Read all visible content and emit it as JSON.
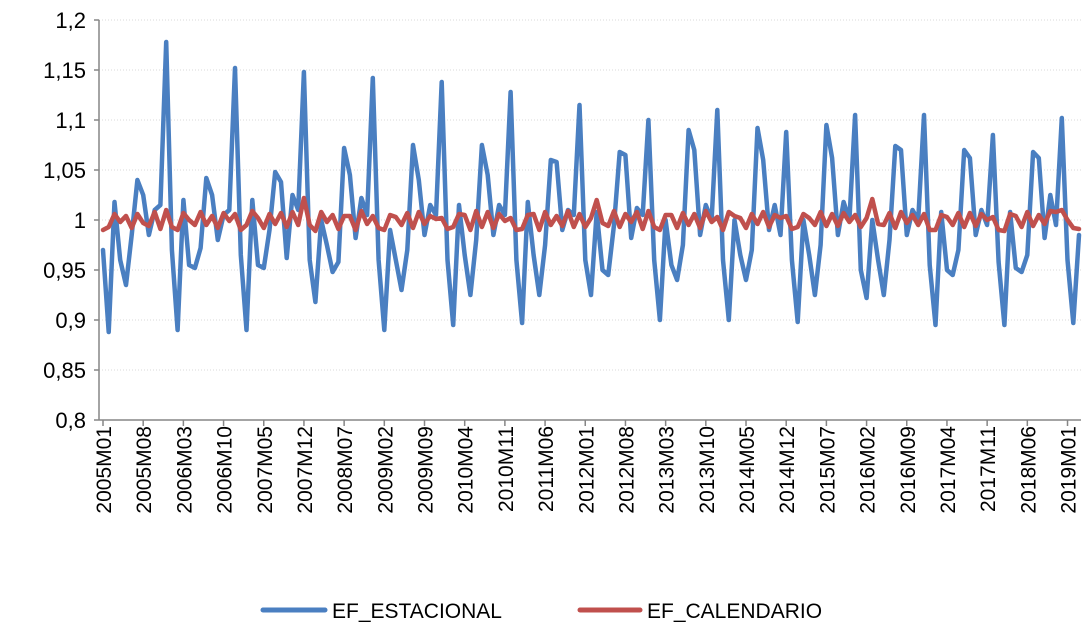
{
  "chart_data": {
    "type": "line",
    "title": "",
    "xlabel": "",
    "ylabel": "",
    "ylim": [
      0.8,
      1.2
    ],
    "ytick_step": 0.05,
    "ytick_labels": [
      "0,8",
      "0,85",
      "0,9",
      "0,95",
      "1",
      "1,05",
      "1,1",
      "1,15",
      "1,2"
    ],
    "x_start": "2005M01",
    "x_end": "2019M03",
    "x_tick_labels": [
      "2005M01",
      "2005M08",
      "2006M03",
      "2006M10",
      "2007M05",
      "2007M12",
      "2008M07",
      "2009M02",
      "2009M09",
      "2010M04",
      "2010M11",
      "2011M06",
      "2012M01",
      "2012M08",
      "2013M03",
      "2013M10",
      "2014M05",
      "2014M12",
      "2015M07",
      "2016M02",
      "2016M09",
      "2017M04",
      "2017M11",
      "2018M06",
      "2019M01"
    ],
    "grid": true,
    "legend_position": "bottom",
    "series": [
      {
        "name": "EF_ESTACIONAL",
        "color": "#4a7fc1",
        "values": [
          0.97,
          0.888,
          1.018,
          0.96,
          0.935,
          0.985,
          1.04,
          1.025,
          0.985,
          1.01,
          1.015,
          1.178,
          0.97,
          0.89,
          1.02,
          0.955,
          0.952,
          0.972,
          1.042,
          1.025,
          0.98,
          1.005,
          1.01,
          1.152,
          0.965,
          0.89,
          1.02,
          0.955,
          0.952,
          0.99,
          1.048,
          1.038,
          0.962,
          1.025,
          1.01,
          1.148,
          0.96,
          0.918,
          1.0,
          0.975,
          0.948,
          0.958,
          1.072,
          1.045,
          0.982,
          1.022,
          1.005,
          1.142,
          0.96,
          0.89,
          0.99,
          0.96,
          0.93,
          0.97,
          1.075,
          1.04,
          0.985,
          1.015,
          1.005,
          1.138,
          0.96,
          0.895,
          1.015,
          0.965,
          0.925,
          0.98,
          1.075,
          1.045,
          0.985,
          1.015,
          1.005,
          1.128,
          0.96,
          0.897,
          1.018,
          0.965,
          0.925,
          0.975,
          1.06,
          1.058,
          0.99,
          1.01,
          1.005,
          1.115,
          0.96,
          0.925,
          1.008,
          0.95,
          0.945,
          0.995,
          1.068,
          1.065,
          0.982,
          1.012,
          1.005,
          1.1,
          0.96,
          0.9,
          1.0,
          0.955,
          0.94,
          0.975,
          1.09,
          1.07,
          0.985,
          1.015,
          1.0,
          1.11,
          0.96,
          0.9,
          1.0,
          0.965,
          0.94,
          0.97,
          1.092,
          1.06,
          0.99,
          1.015,
          0.985,
          1.088,
          0.96,
          0.898,
          1.0,
          0.965,
          0.925,
          0.975,
          1.095,
          1.062,
          0.985,
          1.018,
          1.0,
          1.105,
          0.95,
          0.922,
          1.0,
          0.96,
          0.925,
          0.98,
          1.074,
          1.07,
          0.985,
          1.01,
          1.0,
          1.105,
          0.955,
          0.895,
          1.008,
          0.95,
          0.945,
          0.97,
          1.07,
          1.062,
          0.985,
          1.01,
          0.995,
          1.085,
          0.958,
          0.895,
          1.008,
          0.952,
          0.948,
          0.965,
          1.068,
          1.062,
          0.982,
          1.025,
          0.995,
          1.102,
          0.96,
          0.897,
          0.985
        ]
      },
      {
        "name": "EF_CALENDARIO",
        "color": "#c0504d",
        "values": [
          0.99,
          0.993,
          1.006,
          0.998,
          1.004,
          0.992,
          1.006,
          0.997,
          0.994,
          1.008,
          0.991,
          1.01,
          0.993,
          0.99,
          1.007,
          1.0,
          0.995,
          1.008,
          0.995,
          1.004,
          0.992,
          1.007,
          0.999,
          1.006,
          0.99,
          0.995,
          1.009,
          1.002,
          0.992,
          1.006,
          0.996,
          1.007,
          0.993,
          1.008,
          0.995,
          1.022,
          0.995,
          0.989,
          1.008,
          0.998,
          1.005,
          0.991,
          1.004,
          1.004,
          0.99,
          1.009,
          0.996,
          1.004,
          0.992,
          0.99,
          1.005,
          1.003,
          0.995,
          1.007,
          0.992,
          1.008,
          0.996,
          1.004,
          1.001,
          1.002,
          0.991,
          0.993,
          1.006,
          1.005,
          0.99,
          1.009,
          0.993,
          1.008,
          0.992,
          1.006,
          0.999,
          1.002,
          0.99,
          0.991,
          1.005,
          1.006,
          0.99,
          1.008,
          0.995,
          1.004,
          0.994,
          1.009,
          0.993,
          1.006,
          0.993,
          1.002,
          1.02,
          0.997,
          0.994,
          1.009,
          0.993,
          1.006,
          0.998,
          1.008,
          0.991,
          1.009,
          0.993,
          0.99,
          1.005,
          1.005,
          0.992,
          1.007,
          0.995,
          1.006,
          0.992,
          1.009,
          0.998,
          1.003,
          0.99,
          1.008,
          1.004,
          1.002,
          0.992,
          1.006,
          0.996,
          1.008,
          0.993,
          1.005,
          1.002,
          1.004,
          0.991,
          0.993,
          1.006,
          1.002,
          0.995,
          1.008,
          0.994,
          1.006,
          0.994,
          1.007,
          0.998,
          1.005,
          0.993,
          1.002,
          1.021,
          0.996,
          0.995,
          1.007,
          0.992,
          1.008,
          0.997,
          1.005,
          0.995,
          1.006,
          0.99,
          0.99,
          1.005,
          1.003,
          0.995,
          1.007,
          0.993,
          1.007,
          0.994,
          1.006,
          1.0,
          1.003,
          0.99,
          0.989,
          1.006,
          1.004,
          0.993,
          1.008,
          0.994,
          1.005,
          0.996,
          1.009,
          1.008,
          1.01,
          1.0,
          0.992,
          0.991
        ]
      }
    ]
  }
}
